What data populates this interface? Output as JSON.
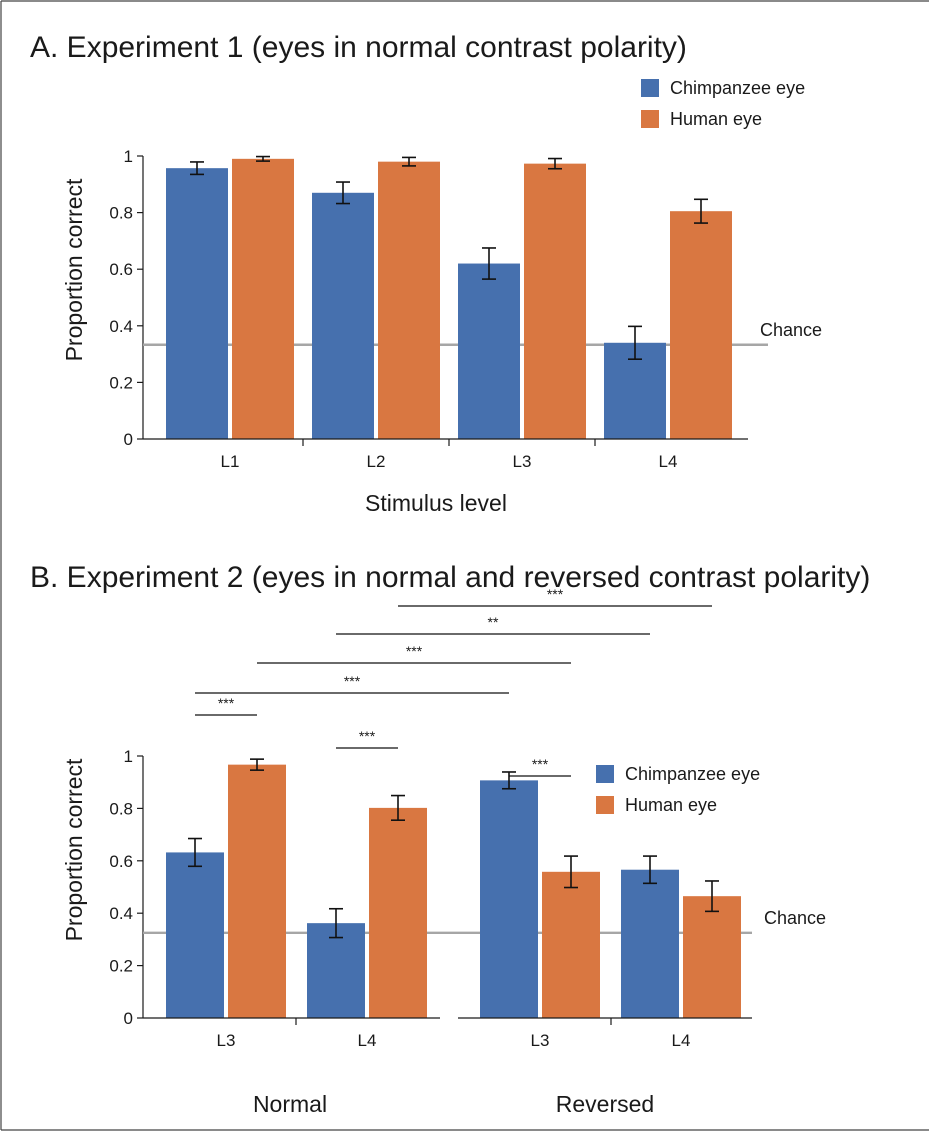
{
  "colors": {
    "chimp": "#4670ae",
    "human": "#d97741",
    "chance_line": "#a6a6a6",
    "axis": "#1a1a1a"
  },
  "chart_data": [
    {
      "id": "A",
      "type": "bar",
      "title": "A. Experiment 1 (eyes in normal contrast polarity)",
      "xlabel": "Stimulus level",
      "ylabel": "Proportion correct",
      "ylim": [
        0,
        1
      ],
      "yticks": [
        "0",
        "0.2",
        "0.4",
        "0.6",
        "0.8",
        "1"
      ],
      "categories": [
        "L1",
        "L2",
        "L3",
        "L4"
      ],
      "series": [
        {
          "name": "Chimpanzee eye",
          "values": [
            0.957,
            0.87,
            0.62,
            0.34
          ],
          "errors": [
            0.022,
            0.038,
            0.055,
            0.058
          ]
        },
        {
          "name": "Human eye",
          "values": [
            0.99,
            0.98,
            0.973,
            0.805
          ],
          "errors": [
            0.008,
            0.015,
            0.018,
            0.042
          ]
        }
      ],
      "chance": {
        "label": "Chance",
        "value": 0.333
      },
      "legend": "top-right"
    },
    {
      "id": "B",
      "type": "bar",
      "title": "B. Experiment 2 (eyes in normal and reversed contrast polarity)",
      "ylabel": "Proportion correct",
      "ylim": [
        0,
        1
      ],
      "yticks": [
        "0",
        "0.2",
        "0.4",
        "0.6",
        "0.8",
        "1"
      ],
      "groups": [
        {
          "label": "Normal",
          "categories": [
            "L3",
            "L4"
          ]
        },
        {
          "label": "Reversed",
          "categories": [
            "L3",
            "L4"
          ]
        }
      ],
      "series": [
        {
          "name": "Chimpanzee eye",
          "values": [
            0.632,
            0.362,
            0.907,
            0.566
          ],
          "errors": [
            0.053,
            0.055,
            0.032,
            0.052
          ]
        },
        {
          "name": "Human eye",
          "values": [
            0.967,
            0.802,
            0.558,
            0.465
          ],
          "errors": [
            0.021,
            0.047,
            0.06,
            0.058
          ]
        }
      ],
      "chance": {
        "label": "Chance",
        "value": 0.325
      },
      "legend": "top-right",
      "significance": [
        {
          "from": "Normal L3 Chimpanzee eye",
          "to": "Normal L3 Human eye",
          "label": "***"
        },
        {
          "from": "Normal L4 Chimpanzee eye",
          "to": "Normal L4 Human eye",
          "label": "***"
        },
        {
          "from": "Reversed L3 Chimpanzee eye",
          "to": "Reversed L3 Human eye",
          "label": "***"
        },
        {
          "from": "Normal L3 Chimpanzee eye",
          "to": "Reversed L3 Chimpanzee eye",
          "label": "***"
        },
        {
          "from": "Normal L3 Human eye",
          "to": "Reversed L3 Human eye",
          "label": "***"
        },
        {
          "from": "Normal L4 Chimpanzee eye",
          "to": "Reversed L4 Chimpanzee eye",
          "label": "**"
        },
        {
          "from": "Normal L4 Human eye",
          "to": "Reversed L4 Human eye",
          "label": "***"
        }
      ]
    }
  ]
}
